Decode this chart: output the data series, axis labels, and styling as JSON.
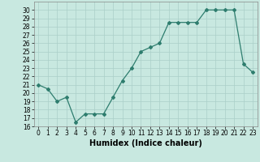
{
  "x": [
    0,
    1,
    2,
    3,
    4,
    5,
    6,
    7,
    8,
    9,
    10,
    11,
    12,
    13,
    14,
    15,
    16,
    17,
    18,
    19,
    20,
    21,
    22,
    23
  ],
  "y": [
    21,
    20.5,
    19,
    19.5,
    16.5,
    17.5,
    17.5,
    17.5,
    19.5,
    21.5,
    23,
    25,
    25.5,
    26,
    28.5,
    28.5,
    28.5,
    28.5,
    30,
    30,
    30,
    30,
    23.5,
    22.5
  ],
  "line_color": "#2e7d6e",
  "marker": "D",
  "marker_size": 2,
  "bg_color": "#c8e8e0",
  "grid_color": "#aacfc8",
  "xlabel": "Humidex (Indice chaleur)",
  "ylim": [
    16,
    31
  ],
  "xlim": [
    -0.5,
    23.5
  ],
  "yticks": [
    16,
    17,
    18,
    19,
    20,
    21,
    22,
    23,
    24,
    25,
    26,
    27,
    28,
    29,
    30
  ],
  "xticks": [
    0,
    1,
    2,
    3,
    4,
    5,
    6,
    7,
    8,
    9,
    10,
    11,
    12,
    13,
    14,
    15,
    16,
    17,
    18,
    19,
    20,
    21,
    22,
    23
  ],
  "tick_fontsize": 5.5,
  "label_fontsize": 7
}
